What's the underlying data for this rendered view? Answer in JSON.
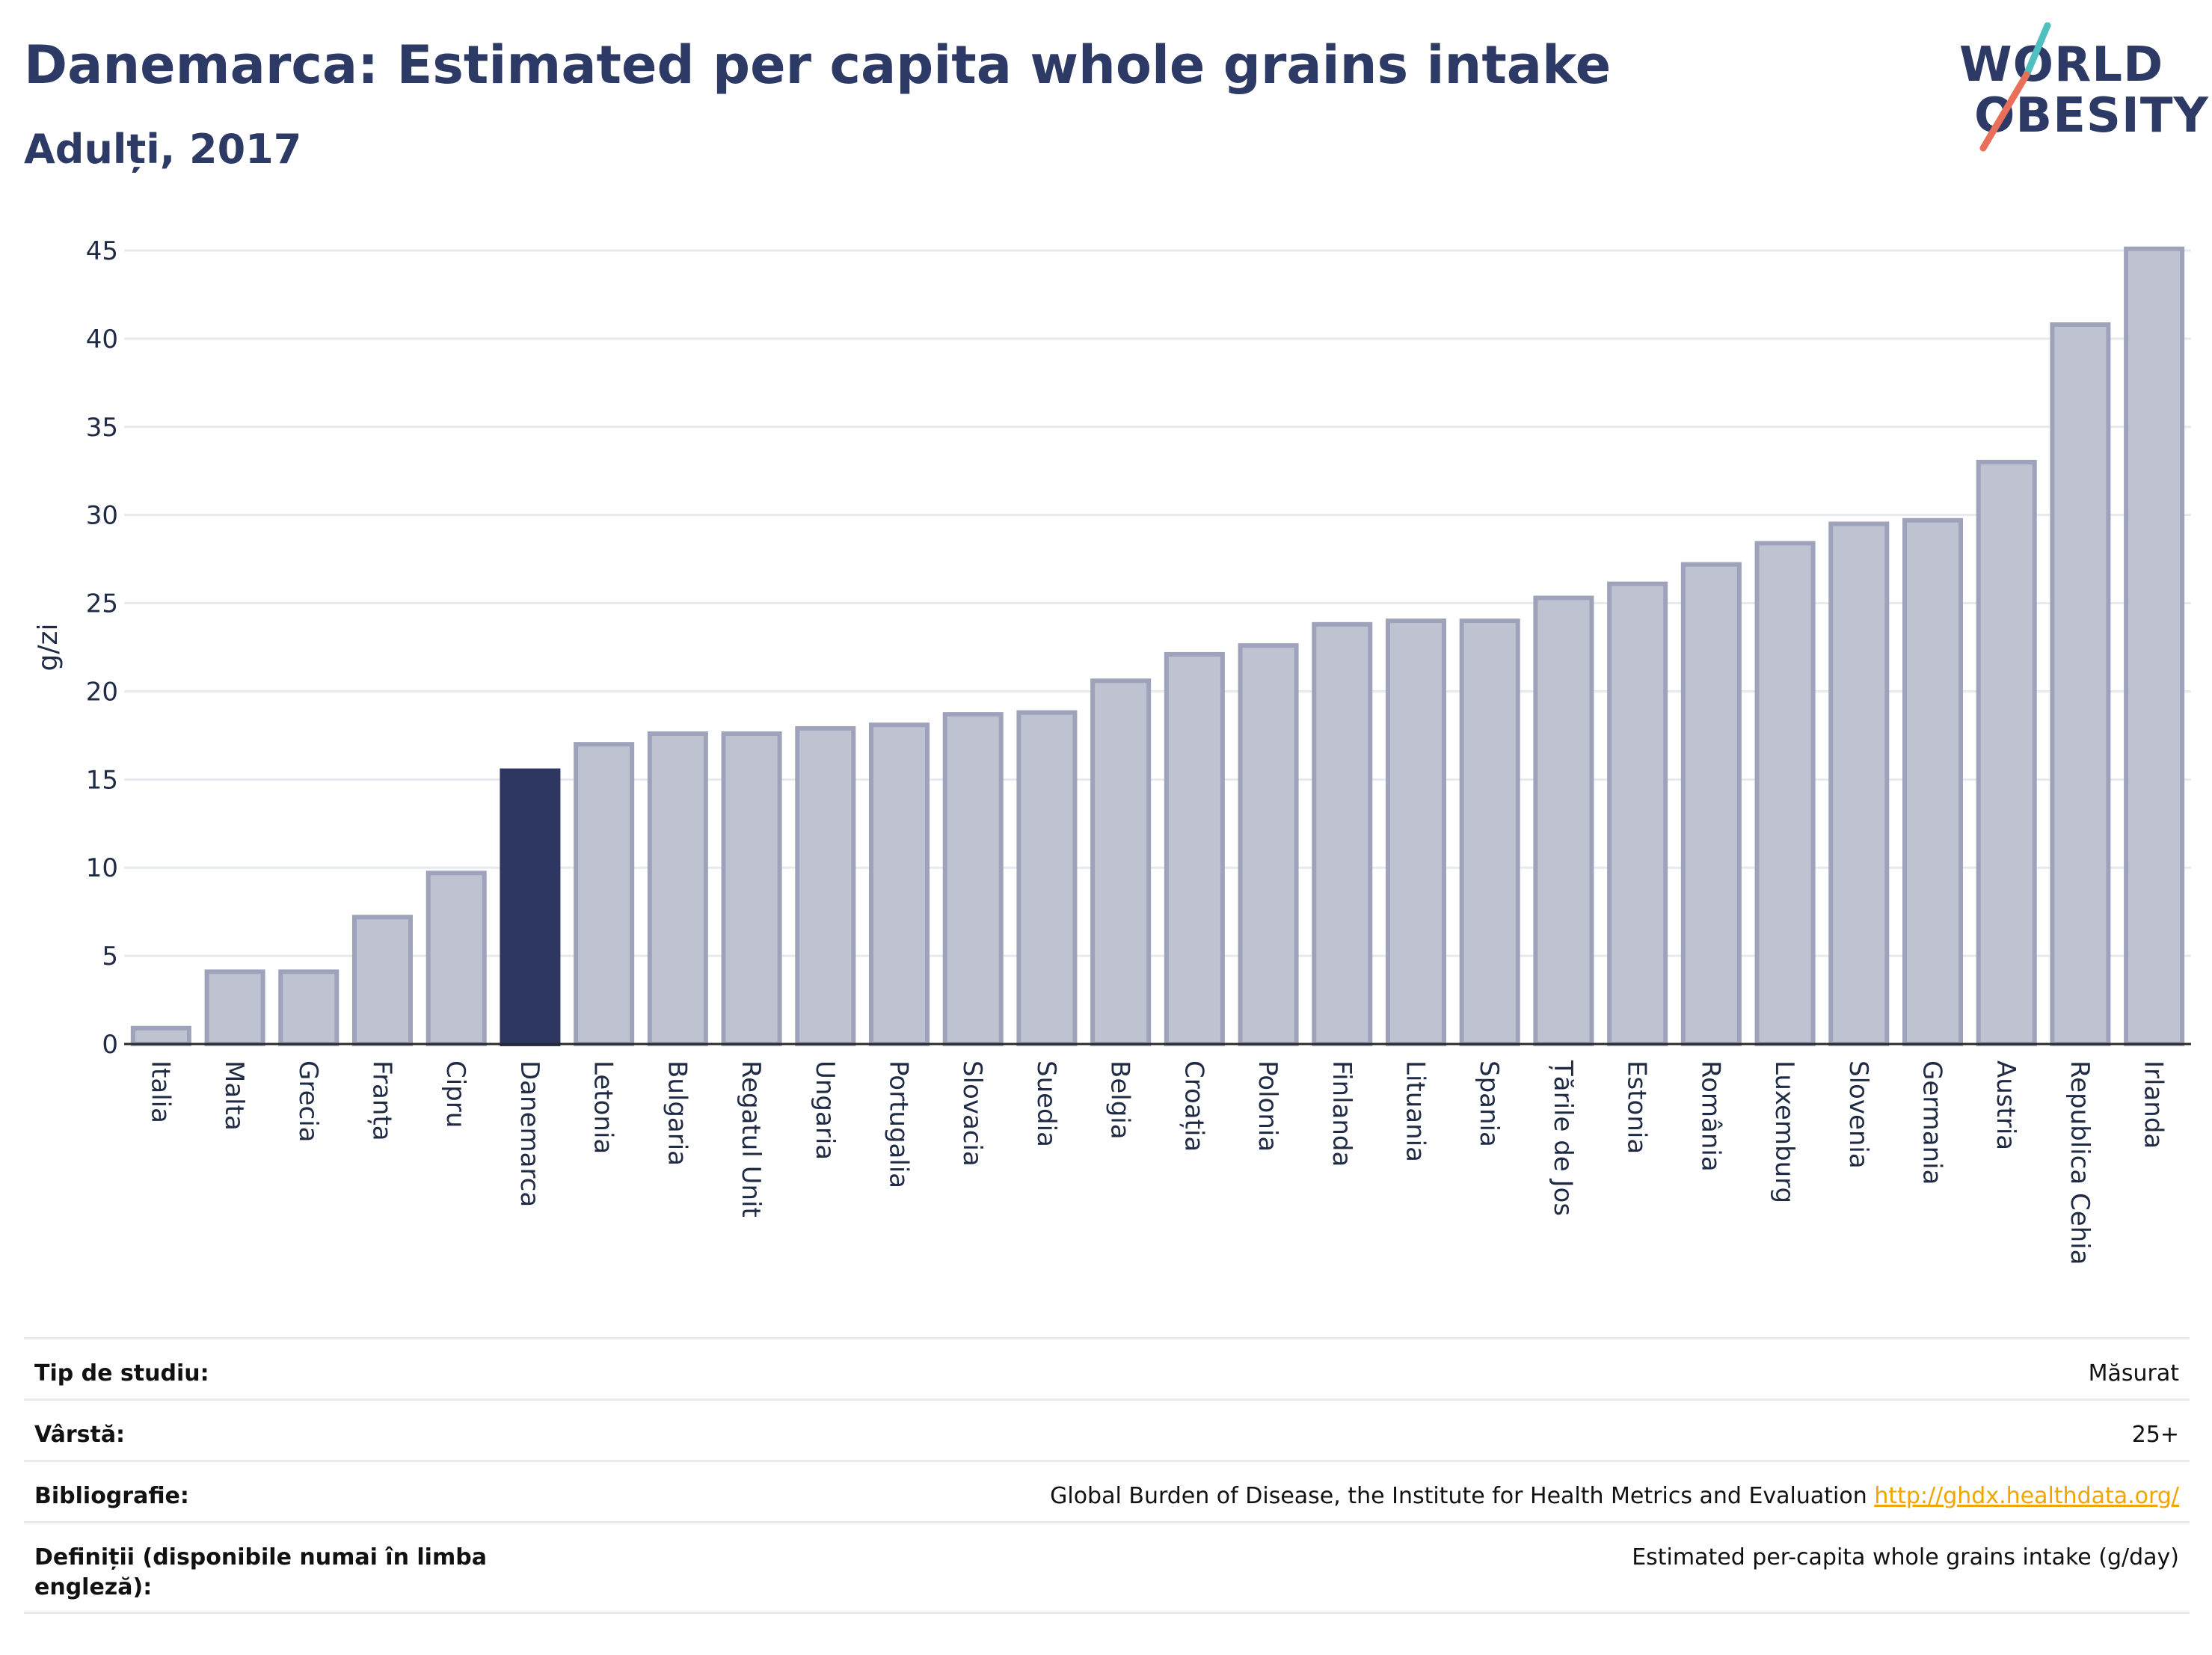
{
  "header": {
    "title": "Danemarca: Estimated per capita whole grains intake",
    "subtitle": "Adulți, 2017"
  },
  "logo": {
    "line1": "WORLD",
    "line2": "OBESITY",
    "slash_colors": [
      "#4fbfbf",
      "#e8705a"
    ]
  },
  "colors": {
    "highlight": "#2d3761",
    "bar": "#bfc3d1",
    "bar_border": "#9ea3bb",
    "grid": "#e6e9ee"
  },
  "chart_data": {
    "type": "bar",
    "ylabel": "g/zi",
    "ylim": [
      0,
      45
    ],
    "yticks": [
      0,
      5,
      10,
      15,
      20,
      25,
      30,
      35,
      40,
      45
    ],
    "grid": true,
    "highlight": "Danemarca",
    "categories": [
      "Italia",
      "Malta",
      "Grecia",
      "Franța",
      "Cipru",
      "Danemarca",
      "Letonia",
      "Bulgaria",
      "Regatul Unit",
      "Ungaria",
      "Portugalia",
      "Slovacia",
      "Suedia",
      "Belgia",
      "Croația",
      "Polonia",
      "Finlanda",
      "Lituania",
      "Spania",
      "Țările de Jos",
      "Estonia",
      "România",
      "Luxemburg",
      "Slovenia",
      "Germania",
      "Austria",
      "Republica Cehia",
      "Irlanda"
    ],
    "values": [
      0.9,
      4.1,
      4.1,
      7.2,
      9.7,
      15.5,
      17.0,
      17.6,
      17.6,
      17.9,
      18.1,
      18.7,
      18.8,
      20.6,
      22.1,
      22.6,
      23.8,
      24.0,
      24.0,
      25.3,
      26.1,
      27.2,
      28.4,
      29.5,
      29.7,
      33.0,
      40.8,
      45.1
    ]
  },
  "info": [
    {
      "label": "Tip de studiu:",
      "value": "Măsurat"
    },
    {
      "label": "Vârstă:",
      "value": "25+"
    },
    {
      "label": "Bibliografie:",
      "value": "Global Burden of Disease, the Institute for Health Metrics and Evaluation",
      "link": "http://ghdx.healthdata.org/"
    },
    {
      "label": "Definiții (disponibile numai în limba engleză):",
      "value": "Estimated per-capita whole grains intake (g/day)"
    }
  ]
}
